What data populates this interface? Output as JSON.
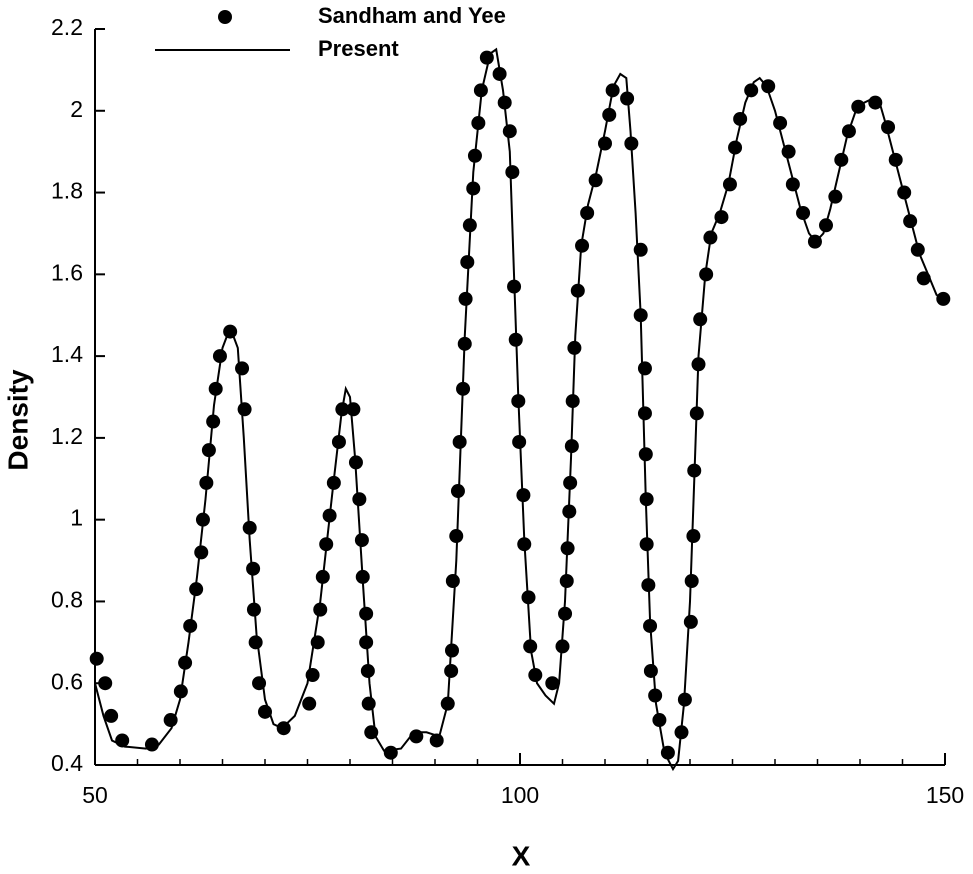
{
  "chart_data": {
    "type": "line_scatter",
    "xlabel": "X",
    "ylabel": "Density",
    "xlim": [
      50,
      150
    ],
    "ylim": [
      0.4,
      2.2
    ],
    "xticks": [
      50,
      100,
      150
    ],
    "x_minor_ticks": [
      55,
      60,
      65,
      70,
      75,
      80,
      85,
      90,
      95,
      105,
      110,
      115,
      120,
      125,
      130,
      135,
      140,
      145
    ],
    "yticks": [
      0.4,
      0.6,
      0.8,
      1,
      1.2,
      1.4,
      1.6,
      1.8,
      2,
      2.2
    ],
    "series": [
      {
        "name": "Sandham and Yee",
        "kind": "scatter",
        "color": "#000000",
        "x": [
          50.2,
          51.2,
          51.9,
          53.2,
          56.7,
          58.9,
          60.1,
          60.6,
          61.2,
          61.9,
          62.5,
          62.7,
          63.1,
          63.4,
          63.9,
          64.2,
          64.7,
          65.9,
          67.3,
          67.6,
          68.2,
          68.6,
          68.7,
          68.9,
          69.3,
          70.0,
          72.2,
          75.2,
          75.6,
          76.2,
          76.5,
          76.8,
          77.2,
          77.6,
          78.1,
          78.7,
          79.1,
          80.4,
          80.7,
          81.1,
          81.4,
          81.5,
          81.9,
          81.9,
          82.1,
          82.2,
          82.5,
          84.8,
          87.8,
          90.2,
          91.5,
          91.9,
          92.0,
          92.1,
          92.5,
          92.7,
          92.9,
          93.3,
          93.5,
          93.6,
          93.8,
          94.1,
          94.5,
          94.7,
          95.1,
          95.4,
          96.1,
          97.6,
          98.2,
          98.8,
          99.1,
          99.3,
          99.5,
          99.8,
          99.9,
          100.4,
          100.5,
          101.0,
          101.2,
          101.8,
          103.8,
          105.0,
          105.3,
          105.5,
          105.6,
          105.8,
          105.9,
          106.1,
          106.2,
          106.4,
          106.8,
          107.3,
          107.9,
          108.9,
          110.0,
          110.5,
          110.9,
          112.6,
          113.1,
          114.2,
          114.2,
          114.7,
          114.7,
          114.8,
          114.9,
          114.9,
          115.1,
          115.3,
          115.4,
          115.9,
          116.4,
          117.4,
          119.0,
          119.4,
          120.1,
          120.2,
          120.4,
          120.5,
          120.8,
          121.0,
          121.2,
          121.9,
          122.4,
          123.7,
          124.7,
          125.3,
          125.9,
          127.2,
          129.2,
          130.6,
          131.6,
          132.1,
          133.3,
          134.7,
          136.0,
          137.1,
          137.8,
          138.7,
          139.8,
          141.8,
          143.3,
          144.2,
          145.2,
          145.9,
          146.8,
          147.5,
          149.8
        ],
        "values": [
          0.66,
          0.6,
          0.52,
          0.46,
          0.45,
          0.51,
          0.58,
          0.65,
          0.74,
          0.83,
          0.92,
          1.0,
          1.09,
          1.17,
          1.24,
          1.32,
          1.4,
          1.46,
          1.37,
          1.27,
          0.98,
          0.88,
          0.78,
          0.7,
          0.6,
          0.53,
          0.49,
          0.55,
          0.62,
          0.7,
          0.78,
          0.86,
          0.94,
          1.01,
          1.09,
          1.19,
          1.27,
          1.27,
          1.14,
          1.05,
          0.95,
          0.86,
          0.77,
          0.7,
          0.63,
          0.55,
          0.48,
          0.43,
          0.47,
          0.46,
          0.55,
          0.63,
          0.68,
          0.85,
          0.96,
          1.07,
          1.19,
          1.32,
          1.43,
          1.54,
          1.63,
          1.72,
          1.81,
          1.89,
          1.97,
          2.05,
          2.13,
          2.09,
          2.02,
          1.95,
          1.85,
          1.57,
          1.44,
          1.29,
          1.19,
          1.06,
          0.94,
          0.81,
          0.69,
          0.62,
          0.6,
          0.69,
          0.77,
          0.85,
          0.93,
          1.02,
          1.09,
          1.18,
          1.29,
          1.42,
          1.56,
          1.67,
          1.75,
          1.83,
          1.92,
          1.99,
          2.05,
          2.03,
          1.92,
          1.66,
          1.5,
          1.37,
          1.26,
          1.16,
          1.05,
          0.94,
          0.84,
          0.74,
          0.63,
          0.57,
          0.51,
          0.43,
          0.48,
          0.56,
          0.75,
          0.85,
          0.96,
          1.12,
          1.26,
          1.38,
          1.49,
          1.6,
          1.69,
          1.74,
          1.82,
          1.91,
          1.98,
          2.05,
          2.06,
          1.97,
          1.9,
          1.82,
          1.75,
          1.68,
          1.72,
          1.79,
          1.88,
          1.95,
          2.01,
          2.02,
          1.96,
          1.88,
          1.8,
          1.73,
          1.66,
          1.59,
          1.54
        ]
      },
      {
        "name": "Present",
        "kind": "line",
        "color": "#000000",
        "x": [
          50,
          51,
          52,
          53.5,
          56,
          57.5,
          59,
          60,
          61,
          62,
          63,
          64,
          65,
          65.9,
          66.8,
          67.5,
          68.2,
          69,
          70,
          71,
          72,
          73.5,
          75,
          76.5,
          78,
          79,
          79.5,
          80,
          80.6,
          81.5,
          82.3,
          83,
          84,
          86,
          87.5,
          89,
          90.5,
          91.5,
          92.5,
          93.5,
          94.5,
          95.5,
          96.5,
          97.2,
          98,
          98.8,
          99.3,
          99.8,
          100.5,
          101.3,
          102,
          103,
          104,
          104.6,
          105.3,
          106,
          106.5,
          107.2,
          108,
          109,
          110,
          111,
          111.8,
          112.5,
          113,
          113.6,
          114.2,
          114.8,
          115.3,
          116,
          117,
          118,
          118.6,
          119.3,
          120,
          120.5,
          121,
          121.8,
          122.5,
          123.5,
          124.5,
          125.5,
          126.5,
          127.5,
          128.2,
          129,
          130,
          131,
          132,
          133,
          134,
          134.8,
          135.7,
          136.5,
          137.5,
          138.5,
          139.5,
          140.5,
          141.5,
          142.3,
          143,
          144,
          145,
          146,
          147,
          148,
          149,
          149.8,
          150
        ],
        "values": [
          0.6,
          0.52,
          0.46,
          0.445,
          0.44,
          0.45,
          0.49,
          0.56,
          0.7,
          0.86,
          1.05,
          1.28,
          1.42,
          1.47,
          1.42,
          1.2,
          0.95,
          0.72,
          0.56,
          0.5,
          0.49,
          0.52,
          0.6,
          0.8,
          1.08,
          1.26,
          1.32,
          1.3,
          1.15,
          0.85,
          0.6,
          0.47,
          0.435,
          0.44,
          0.48,
          0.48,
          0.47,
          0.55,
          0.9,
          1.45,
          1.85,
          2.05,
          2.14,
          2.15,
          2.05,
          1.9,
          1.6,
          1.3,
          0.95,
          0.68,
          0.6,
          0.57,
          0.55,
          0.6,
          0.8,
          1.15,
          1.45,
          1.67,
          1.77,
          1.85,
          1.95,
          2.06,
          2.09,
          2.08,
          1.95,
          1.75,
          1.5,
          1.05,
          0.75,
          0.55,
          0.43,
          0.39,
          0.41,
          0.55,
          0.8,
          1.1,
          1.4,
          1.6,
          1.7,
          1.75,
          1.82,
          1.93,
          2.02,
          2.07,
          2.08,
          2.06,
          2.0,
          1.92,
          1.84,
          1.76,
          1.7,
          1.68,
          1.7,
          1.76,
          1.85,
          1.94,
          2.0,
          2.02,
          2.03,
          2.02,
          1.97,
          1.89,
          1.81,
          1.73,
          1.65,
          1.6,
          1.55,
          1.54,
          1.55
        ]
      }
    ]
  }
}
